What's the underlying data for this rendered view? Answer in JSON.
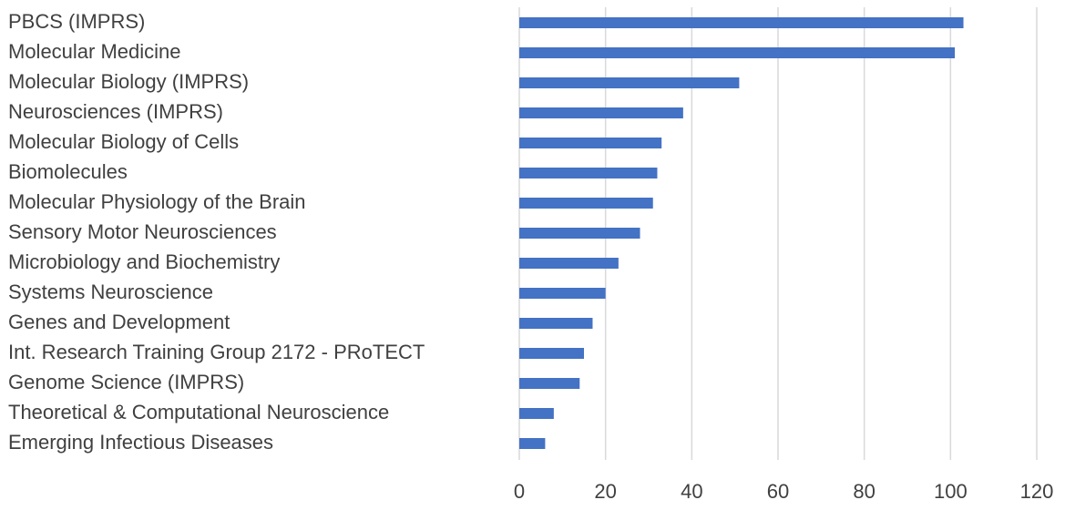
{
  "chart_data": {
    "type": "barh",
    "categories": [
      "PBCS (IMPRS)",
      "Molecular Medicine",
      "Molecular Biology (IMPRS)",
      "Neurosciences (IMPRS)",
      "Molecular Biology of Cells",
      "Biomolecules",
      "Molecular Physiology of the Brain",
      "Sensory Motor Neurosciences",
      "Microbiology and Biochemistry",
      "Systems Neuroscience",
      "Genes and Development",
      "Int. Research Training Group 2172 - PRoTECT",
      "Genome Science (IMPRS)",
      "Theoretical & Computational Neuroscience",
      "Emerging Infectious Diseases"
    ],
    "values": [
      103,
      101,
      51,
      38,
      33,
      32,
      31,
      28,
      23,
      20,
      17,
      15,
      14,
      8,
      6
    ],
    "color": "#4472c4",
    "xlim": [
      0,
      120
    ],
    "xticks": [
      0,
      20,
      40,
      60,
      80,
      100,
      120
    ],
    "grid": true
  }
}
